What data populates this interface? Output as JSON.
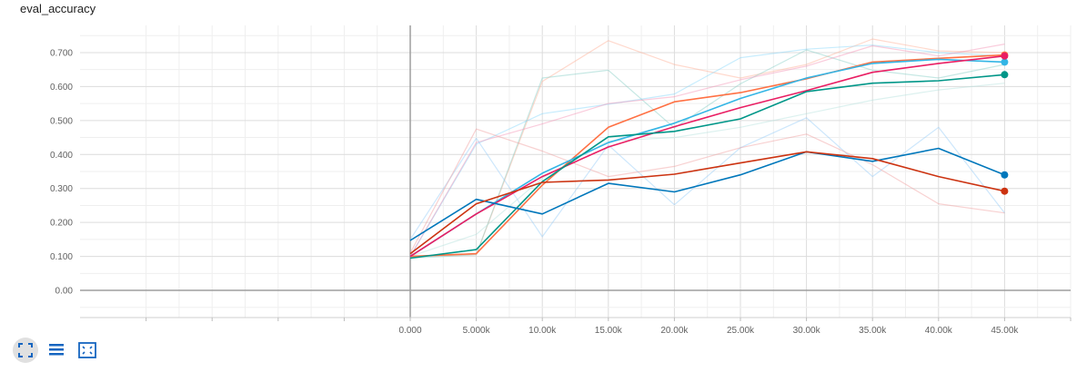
{
  "chart_data": {
    "type": "line",
    "title": "eval_accuracy",
    "xlabel": "",
    "ylabel": "",
    "xlim": [
      -25000,
      50000
    ],
    "ylim": [
      -0.08,
      0.78
    ],
    "x": [
      0,
      5000,
      10000,
      15000,
      20000,
      25000,
      30000,
      35000,
      40000,
      45000
    ],
    "x_tick_values": [
      0,
      5000,
      10000,
      15000,
      20000,
      25000,
      30000,
      35000,
      40000,
      45000
    ],
    "x_tick_labels": [
      "0.000",
      "5.000k",
      "10.00k",
      "15.00k",
      "20.00k",
      "25.00k",
      "30.00k",
      "35.00k",
      "40.00k",
      "45.00k"
    ],
    "y_tick_values": [
      0,
      0.1,
      0.2,
      0.3,
      0.4,
      0.5,
      0.6,
      0.7
    ],
    "y_tick_labels": [
      "0.00",
      "0.100",
      "0.200",
      "0.300",
      "0.400",
      "0.500",
      "0.600",
      "0.700"
    ],
    "grid": true,
    "series": [
      {
        "color": "#ff7043",
        "width": 1.6,
        "opacity": 1,
        "end_marker": true,
        "values": [
          0.1,
          0.108,
          0.31,
          0.48,
          0.555,
          0.582,
          0.623,
          0.672,
          0.683,
          0.693
        ]
      },
      {
        "color": "#33b5e5",
        "width": 1.6,
        "opacity": 1,
        "end_marker": true,
        "values": [
          0.1,
          0.225,
          0.345,
          0.435,
          0.492,
          0.565,
          0.625,
          0.668,
          0.68,
          0.672
        ]
      },
      {
        "color": "#e91e63",
        "width": 1.6,
        "opacity": 1,
        "end_marker": true,
        "values": [
          0.1,
          0.225,
          0.335,
          0.422,
          0.482,
          0.538,
          0.588,
          0.642,
          0.668,
          0.69
        ]
      },
      {
        "color": "#009688",
        "width": 1.6,
        "opacity": 1,
        "end_marker": true,
        "values": [
          0.095,
          0.12,
          0.32,
          0.452,
          0.468,
          0.505,
          0.585,
          0.61,
          0.617,
          0.635
        ]
      },
      {
        "color": "#0077bb",
        "width": 1.6,
        "opacity": 1,
        "end_marker": true,
        "values": [
          0.147,
          0.268,
          0.225,
          0.315,
          0.29,
          0.34,
          0.408,
          0.38,
          0.418,
          0.34
        ]
      },
      {
        "color": "#cc3311",
        "width": 1.6,
        "opacity": 1,
        "end_marker": true,
        "values": [
          0.108,
          0.255,
          0.318,
          0.325,
          0.342,
          0.375,
          0.408,
          0.388,
          0.335,
          0.292
        ]
      },
      {
        "color": "#ffab91",
        "width": 1.2,
        "opacity": 0.45,
        "end_marker": false,
        "values": [
          0.1,
          0.105,
          0.615,
          0.735,
          0.665,
          0.625,
          0.665,
          0.74,
          0.705,
          0.7
        ]
      },
      {
        "color": "#80cbc4",
        "width": 1.2,
        "opacity": 0.45,
        "end_marker": false,
        "values": [
          0.095,
          0.105,
          0.625,
          0.648,
          0.478,
          0.608,
          0.708,
          0.648,
          0.625,
          0.665
        ]
      },
      {
        "color": "#81d4fa",
        "width": 1.2,
        "opacity": 0.45,
        "end_marker": false,
        "values": [
          0.1,
          0.43,
          0.52,
          0.548,
          0.578,
          0.685,
          0.71,
          0.722,
          0.7,
          0.69
        ]
      },
      {
        "color": "#f48fb1",
        "width": 1.2,
        "opacity": 0.45,
        "end_marker": false,
        "values": [
          0.1,
          0.435,
          0.49,
          0.55,
          0.57,
          0.62,
          0.66,
          0.72,
          0.69,
          0.725
        ]
      },
      {
        "color": "#90caf9",
        "width": 1.2,
        "opacity": 0.45,
        "end_marker": false,
        "values": [
          0.15,
          0.448,
          0.158,
          0.428,
          0.252,
          0.42,
          0.508,
          0.335,
          0.48,
          0.228
        ]
      },
      {
        "color": "#ef9a9a",
        "width": 1.2,
        "opacity": 0.45,
        "end_marker": false,
        "values": [
          0.11,
          0.475,
          0.41,
          0.335,
          0.365,
          0.42,
          0.46,
          0.37,
          0.255,
          0.228
        ]
      },
      {
        "color": "#b2dfdb",
        "width": 1.2,
        "opacity": 0.45,
        "end_marker": false,
        "values": [
          0.1,
          0.165,
          0.33,
          0.44,
          0.45,
          0.48,
          0.52,
          0.56,
          0.59,
          0.61
        ]
      }
    ]
  },
  "toolbar": {
    "buttons": [
      {
        "icon": "expand-icon"
      },
      {
        "icon": "data-table-icon"
      },
      {
        "icon": "fit-domain-icon"
      }
    ]
  }
}
